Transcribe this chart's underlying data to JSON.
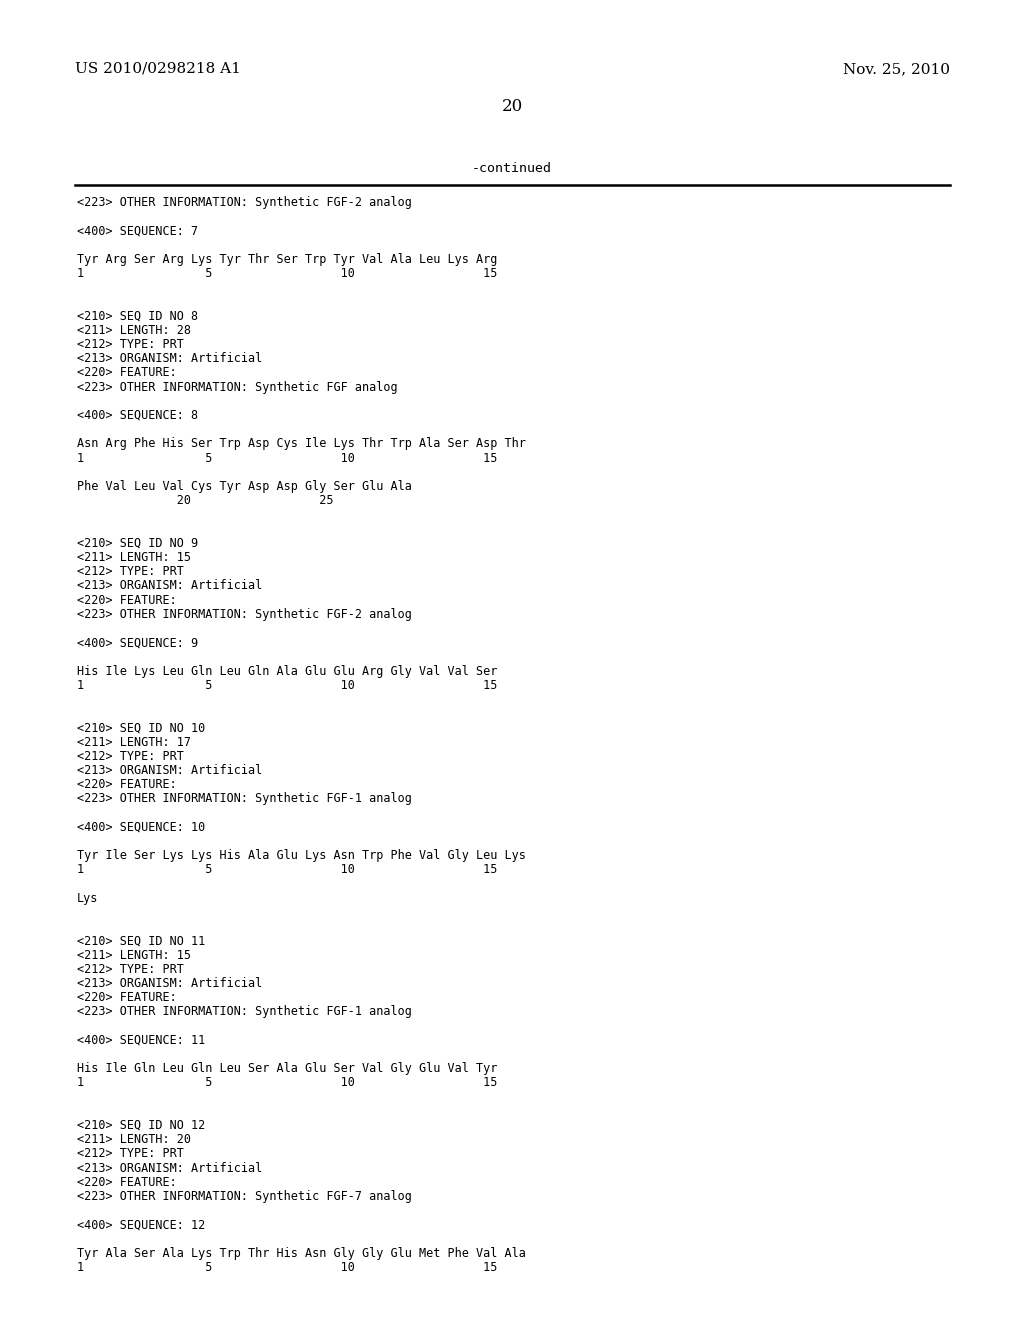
{
  "header_left": "US 2010/0298218 A1",
  "header_right": "Nov. 25, 2010",
  "page_number": "20",
  "continued_label": "-continued",
  "background_color": "#ffffff",
  "text_color": "#000000",
  "header_fontsize": 11,
  "page_num_fontsize": 12,
  "mono_fontsize": 8.5,
  "continued_fontsize": 9.5,
  "lines": [
    "<223> OTHER INFORMATION: Synthetic FGF-2 analog",
    "",
    "<400> SEQUENCE: 7",
    "",
    "Tyr Arg Ser Arg Lys Tyr Thr Ser Trp Tyr Val Ala Leu Lys Arg",
    "1                 5                  10                  15",
    "",
    "",
    "<210> SEQ ID NO 8",
    "<211> LENGTH: 28",
    "<212> TYPE: PRT",
    "<213> ORGANISM: Artificial",
    "<220> FEATURE:",
    "<223> OTHER INFORMATION: Synthetic FGF analog",
    "",
    "<400> SEQUENCE: 8",
    "",
    "Asn Arg Phe His Ser Trp Asp Cys Ile Lys Thr Trp Ala Ser Asp Thr",
    "1                 5                  10                  15",
    "",
    "Phe Val Leu Val Cys Tyr Asp Asp Gly Ser Glu Ala",
    "              20                  25",
    "",
    "",
    "<210> SEQ ID NO 9",
    "<211> LENGTH: 15",
    "<212> TYPE: PRT",
    "<213> ORGANISM: Artificial",
    "<220> FEATURE:",
    "<223> OTHER INFORMATION: Synthetic FGF-2 analog",
    "",
    "<400> SEQUENCE: 9",
    "",
    "His Ile Lys Leu Gln Leu Gln Ala Glu Glu Arg Gly Val Val Ser",
    "1                 5                  10                  15",
    "",
    "",
    "<210> SEQ ID NO 10",
    "<211> LENGTH: 17",
    "<212> TYPE: PRT",
    "<213> ORGANISM: Artificial",
    "<220> FEATURE:",
    "<223> OTHER INFORMATION: Synthetic FGF-1 analog",
    "",
    "<400> SEQUENCE: 10",
    "",
    "Tyr Ile Ser Lys Lys His Ala Glu Lys Asn Trp Phe Val Gly Leu Lys",
    "1                 5                  10                  15",
    "",
    "Lys",
    "",
    "",
    "<210> SEQ ID NO 11",
    "<211> LENGTH: 15",
    "<212> TYPE: PRT",
    "<213> ORGANISM: Artificial",
    "<220> FEATURE:",
    "<223> OTHER INFORMATION: Synthetic FGF-1 analog",
    "",
    "<400> SEQUENCE: 11",
    "",
    "His Ile Gln Leu Gln Leu Ser Ala Glu Ser Val Gly Glu Val Tyr",
    "1                 5                  10                  15",
    "",
    "",
    "<210> SEQ ID NO 12",
    "<211> LENGTH: 20",
    "<212> TYPE: PRT",
    "<213> ORGANISM: Artificial",
    "<220> FEATURE:",
    "<223> OTHER INFORMATION: Synthetic FGF-7 analog",
    "",
    "<400> SEQUENCE: 12",
    "",
    "Tyr Ala Ser Ala Lys Trp Thr His Asn Gly Gly Glu Met Phe Val Ala",
    "1                 5                  10                  15"
  ]
}
